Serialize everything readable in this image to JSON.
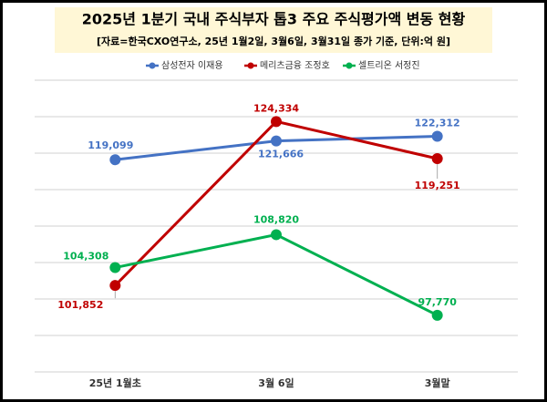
{
  "chart_data": {
    "type": "line",
    "title": "2025년 1분기 국내 주식부자 톱3 주요 주식평가액 변동 현황",
    "subtitle": "[자료=한국CXO연구소, 25년 1월2일, 3월6일, 3월31일 종가 기준, 단위:억 원]",
    "categories": [
      "25년 1월초",
      "3월 6일",
      "3월말"
    ],
    "series": [
      {
        "name": "삼성전자 이재용",
        "color": "#4472c4",
        "values": [
          119099,
          121666,
          122312
        ],
        "value_labels": [
          "119,099",
          "121,666",
          "122,312"
        ]
      },
      {
        "name": "메리츠금융 조정호",
        "color": "#c00000",
        "values": [
          101852,
          124334,
          119251
        ],
        "value_labels": [
          "101,852",
          "124,334",
          "119,251"
        ]
      },
      {
        "name": "셀트리온 서정진",
        "color": "#00b050",
        "values": [
          104308,
          108820,
          97770
        ],
        "value_labels": [
          "104,308",
          "108,820",
          "97,770"
        ]
      }
    ],
    "ylim": [
      90000,
      130000
    ],
    "yticks": [
      90000,
      95000,
      100000,
      105000,
      110000,
      115000,
      120000,
      125000,
      130000
    ],
    "grid": true,
    "legend": "top"
  }
}
